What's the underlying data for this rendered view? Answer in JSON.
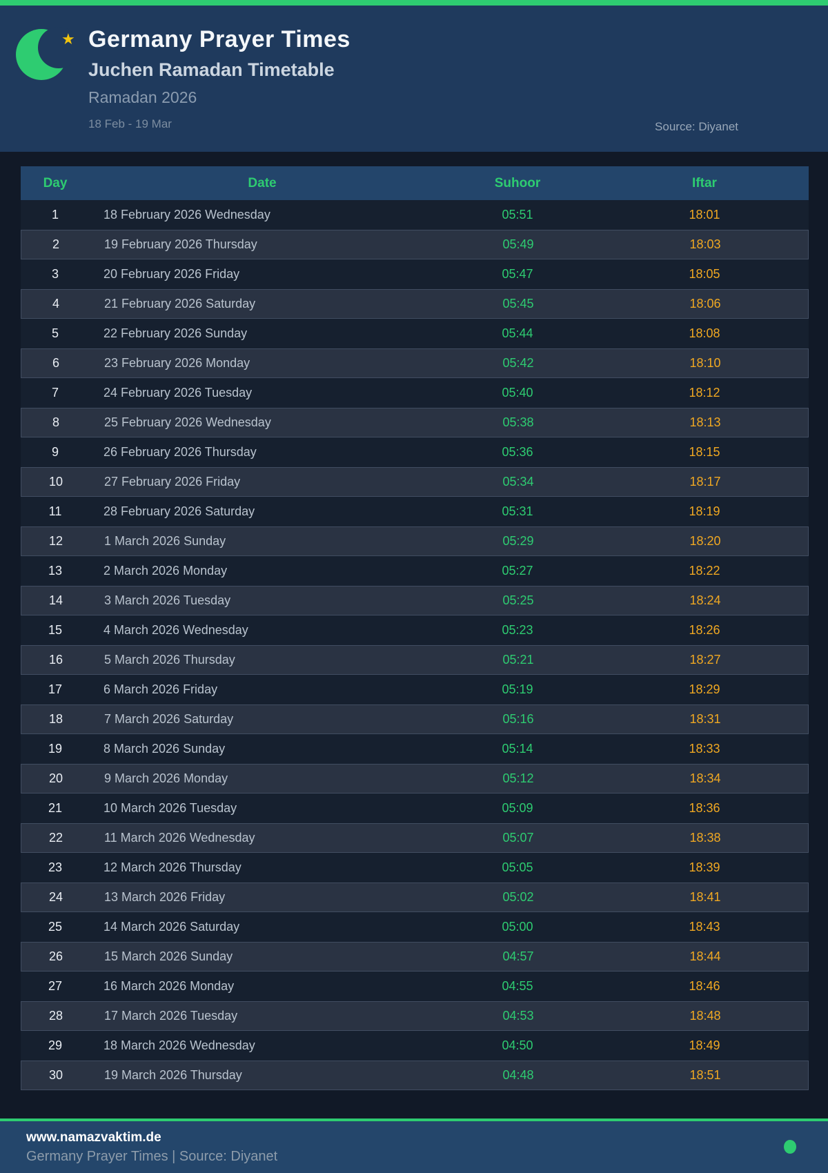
{
  "colors": {
    "accent_green": "#2ecc71",
    "iftar_orange": "#f0a822",
    "star_gold": "#f1c40f",
    "header_navy": "#1f3a5d",
    "page_dark": "#111927"
  },
  "header": {
    "title": "Germany Prayer Times",
    "subtitle": "Juchen Ramadan Timetable",
    "season": "Ramadan 2026",
    "range": "18 Feb - 19 Mar",
    "source": "Source: Diyanet",
    "icons": [
      "crescent-moon-icon",
      "star-icon"
    ]
  },
  "table": {
    "columns": [
      "Day",
      "Date",
      "Suhoor",
      "Iftar"
    ],
    "rows": [
      {
        "day": "1",
        "date": "18 February 2026 Wednesday",
        "suhoor": "05:51",
        "iftar": "18:01"
      },
      {
        "day": "2",
        "date": "19 February 2026 Thursday",
        "suhoor": "05:49",
        "iftar": "18:03"
      },
      {
        "day": "3",
        "date": "20 February 2026 Friday",
        "suhoor": "05:47",
        "iftar": "18:05"
      },
      {
        "day": "4",
        "date": "21 February 2026 Saturday",
        "suhoor": "05:45",
        "iftar": "18:06"
      },
      {
        "day": "5",
        "date": "22 February 2026 Sunday",
        "suhoor": "05:44",
        "iftar": "18:08"
      },
      {
        "day": "6",
        "date": "23 February 2026 Monday",
        "suhoor": "05:42",
        "iftar": "18:10"
      },
      {
        "day": "7",
        "date": "24 February 2026 Tuesday",
        "suhoor": "05:40",
        "iftar": "18:12"
      },
      {
        "day": "8",
        "date": "25 February 2026 Wednesday",
        "suhoor": "05:38",
        "iftar": "18:13"
      },
      {
        "day": "9",
        "date": "26 February 2026 Thursday",
        "suhoor": "05:36",
        "iftar": "18:15"
      },
      {
        "day": "10",
        "date": "27 February 2026 Friday",
        "suhoor": "05:34",
        "iftar": "18:17"
      },
      {
        "day": "11",
        "date": "28 February 2026 Saturday",
        "suhoor": "05:31",
        "iftar": "18:19"
      },
      {
        "day": "12",
        "date": "1 March 2026 Sunday",
        "suhoor": "05:29",
        "iftar": "18:20"
      },
      {
        "day": "13",
        "date": "2 March 2026 Monday",
        "suhoor": "05:27",
        "iftar": "18:22"
      },
      {
        "day": "14",
        "date": "3 March 2026 Tuesday",
        "suhoor": "05:25",
        "iftar": "18:24"
      },
      {
        "day": "15",
        "date": "4 March 2026 Wednesday",
        "suhoor": "05:23",
        "iftar": "18:26"
      },
      {
        "day": "16",
        "date": "5 March 2026 Thursday",
        "suhoor": "05:21",
        "iftar": "18:27"
      },
      {
        "day": "17",
        "date": "6 March 2026 Friday",
        "suhoor": "05:19",
        "iftar": "18:29"
      },
      {
        "day": "18",
        "date": "7 March 2026 Saturday",
        "suhoor": "05:16",
        "iftar": "18:31"
      },
      {
        "day": "19",
        "date": "8 March 2026 Sunday",
        "suhoor": "05:14",
        "iftar": "18:33"
      },
      {
        "day": "20",
        "date": "9 March 2026 Monday",
        "suhoor": "05:12",
        "iftar": "18:34"
      },
      {
        "day": "21",
        "date": "10 March 2026 Tuesday",
        "suhoor": "05:09",
        "iftar": "18:36"
      },
      {
        "day": "22",
        "date": "11 March 2026 Wednesday",
        "suhoor": "05:07",
        "iftar": "18:38"
      },
      {
        "day": "23",
        "date": "12 March 2026 Thursday",
        "suhoor": "05:05",
        "iftar": "18:39"
      },
      {
        "day": "24",
        "date": "13 March 2026 Friday",
        "suhoor": "05:02",
        "iftar": "18:41"
      },
      {
        "day": "25",
        "date": "14 March 2026 Saturday",
        "suhoor": "05:00",
        "iftar": "18:43"
      },
      {
        "day": "26",
        "date": "15 March 2026 Sunday",
        "suhoor": "04:57",
        "iftar": "18:44"
      },
      {
        "day": "27",
        "date": "16 March 2026 Monday",
        "suhoor": "04:55",
        "iftar": "18:46"
      },
      {
        "day": "28",
        "date": "17 March 2026 Tuesday",
        "suhoor": "04:53",
        "iftar": "18:48"
      },
      {
        "day": "29",
        "date": "18 March 2026 Wednesday",
        "suhoor": "04:50",
        "iftar": "18:49"
      },
      {
        "day": "30",
        "date": "19 March 2026 Thursday",
        "suhoor": "04:48",
        "iftar": "18:51"
      }
    ]
  },
  "footer": {
    "website": "www.namazvaktim.de",
    "tagline": "Germany Prayer Times | Source: Diyanet"
  }
}
